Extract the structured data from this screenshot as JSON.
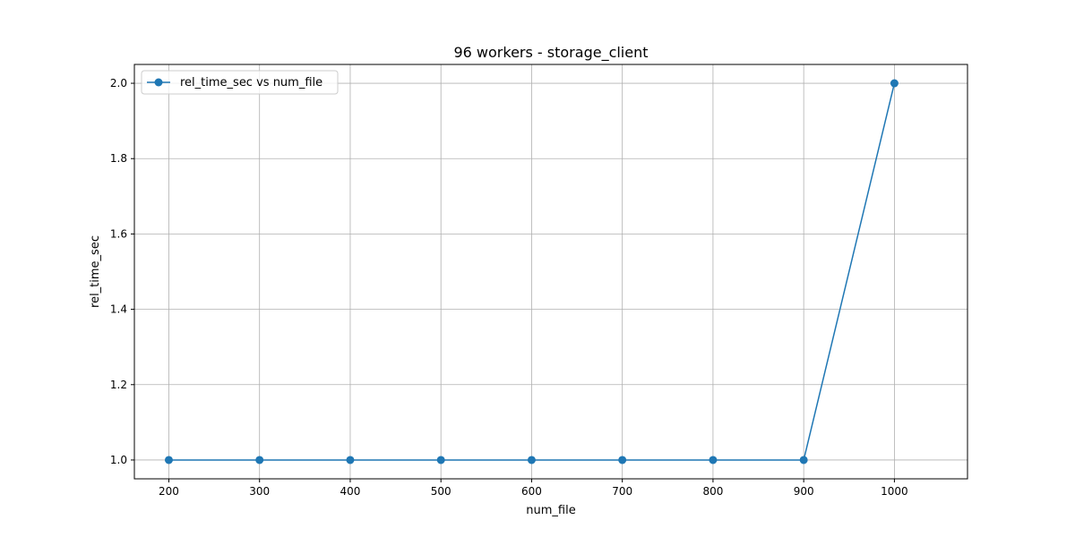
{
  "chart_data": {
    "type": "line",
    "title": "96 workers - storage_client",
    "xlabel": "num_file",
    "ylabel": "rel_time_sec",
    "x": [
      200,
      300,
      400,
      500,
      600,
      700,
      800,
      900,
      1000
    ],
    "series": [
      {
        "name": "rel_time_sec vs num_file",
        "values": [
          1.0,
          1.0,
          1.0,
          1.0,
          1.0,
          1.0,
          1.0,
          1.0,
          2.0
        ],
        "color": "#1f77b4",
        "marker": "circle"
      }
    ],
    "xlim": [
      162,
      1040
    ],
    "ylim": [
      0.95,
      2.05
    ],
    "xticks": [
      200,
      300,
      400,
      500,
      600,
      700,
      800,
      900,
      1000
    ],
    "xtick_labels": [
      "200",
      "300",
      "400",
      "500",
      "600",
      "700",
      "800",
      "900",
      "1000"
    ],
    "yticks": [
      1.0,
      1.2,
      1.4,
      1.6,
      1.8,
      2.0
    ],
    "ytick_labels": [
      "1.0",
      "1.2",
      "1.4",
      "1.6",
      "1.8",
      "2.0"
    ],
    "grid": true,
    "legend_position": "top-left"
  }
}
